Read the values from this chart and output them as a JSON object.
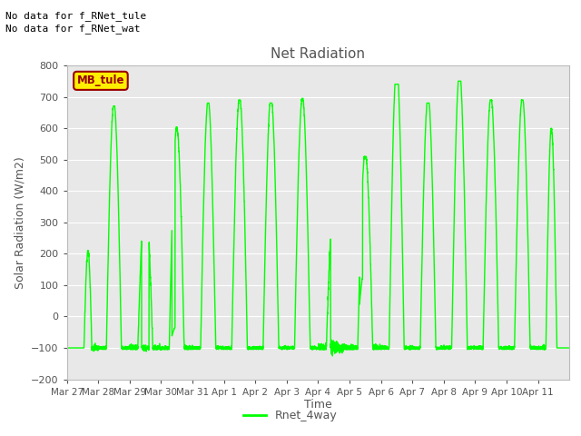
{
  "title": "Net Radiation",
  "xlabel": "Time",
  "ylabel": "Solar Radiation (W/m2)",
  "ylim": [
    -200,
    800
  ],
  "yticks": [
    -200,
    -100,
    0,
    100,
    200,
    300,
    400,
    500,
    600,
    700,
    800
  ],
  "line_color": "#00FF00",
  "line_width": 1.0,
  "background_color": "#E8E8E8",
  "figure_color": "#FFFFFF",
  "text_color": "#555555",
  "title_fontsize": 11,
  "label_fontsize": 9,
  "tick_fontsize": 8,
  "annotation1": "No data for f_RNet_tule",
  "annotation2": "No data for f_RNet_wat",
  "legend_label": "Rnet_4way",
  "legend_box_text": "MB_tule",
  "legend_box_color": "#FFEE00",
  "legend_box_edge_color": "#990000",
  "num_days": 16,
  "date_labels": [
    "Mar 27",
    "Mar 28",
    "Mar 29",
    "Mar 30",
    "Mar 31",
    "Apr 1",
    "Apr 2",
    "Apr 3",
    "Apr 4",
    "Apr 5",
    "Apr 6",
    "Apr 7",
    "Apr 8",
    "Apr 9",
    "Apr 10",
    "Apr 11"
  ]
}
